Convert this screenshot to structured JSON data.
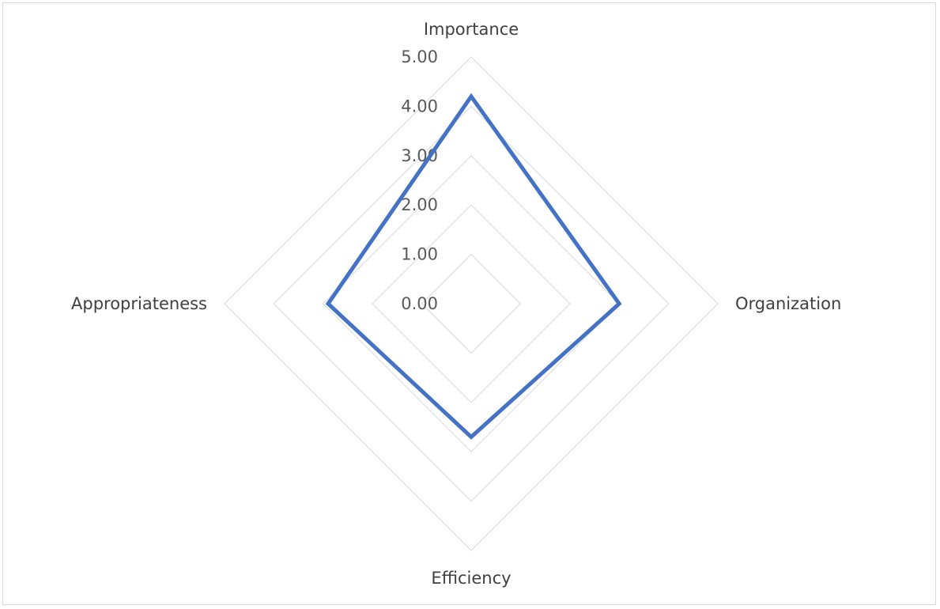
{
  "chart_data": {
    "type": "radar",
    "categories": [
      "Importance",
      "Organization",
      "Efficiency",
      "Appropriateness"
    ],
    "tick_labels": [
      "0.00",
      "1.00",
      "2.00",
      "3.00",
      "4.00",
      "5.00"
    ],
    "rlim": [
      0,
      5
    ],
    "series": [
      {
        "values": [
          4.2,
          3.0,
          2.7,
          2.9
        ],
        "color": "#4472c4"
      }
    ],
    "grid": true,
    "grid_color": "#d9d9d9",
    "legend": "none"
  }
}
